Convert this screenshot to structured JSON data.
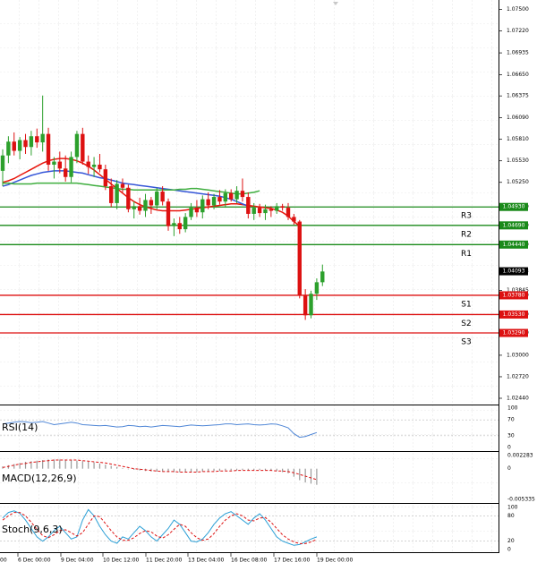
{
  "colors": {
    "up": "#2ca02c",
    "down": "#dd1111",
    "resistance": "#1a8a1a",
    "support": "#dd1111",
    "ma_fast": "#e8150c",
    "ma_mid": "#3656d8",
    "ma_slow": "#3fae3f",
    "rsi": "#4f86d6",
    "macd_hist": "#9a9a9a",
    "macd_signal": "#dd1111",
    "stoch_main": "#2b9fd6",
    "stoch_signal": "#dd1111"
  },
  "chart_data": [
    {
      "type": "candlestick",
      "title": "",
      "ylim": [
        1.0244,
        1.0753
      ],
      "y_ticks": [
        "1.07500",
        "1.07220",
        "1.06935",
        "1.06650",
        "1.06375",
        "1.06090",
        "1.05810",
        "1.05530",
        "1.05250",
        "1.04930",
        "1.04690",
        "1.04440",
        "1.04093",
        "1.03845",
        "1.03780",
        "1.03530",
        "1.03290",
        "1.03000",
        "1.02720",
        "1.02440"
      ],
      "x_ticks": [
        "6 Dec 00:00",
        "9 Dec 04:00",
        "10 Dec 12:00",
        "11 Dec 20:00",
        "13 Dec 04:00",
        "16 Dec 08:00",
        "17 Dec 16:00",
        "19 Dec 00:00"
      ],
      "x_tick_partial": "00",
      "current_price": {
        "label": "1.04093",
        "value": 1.04093
      },
      "levels": [
        {
          "name": "R3",
          "label": "1.04930",
          "value": 1.0493,
          "kind": "resistance"
        },
        {
          "name": "R2",
          "label": "1.04690",
          "value": 1.0469,
          "kind": "resistance"
        },
        {
          "name": "R1",
          "label": "1.04440",
          "value": 1.0444,
          "kind": "resistance"
        },
        {
          "name": "S1",
          "label": "1.03780",
          "value": 1.0378,
          "kind": "support"
        },
        {
          "name": "S2",
          "label": "1.03530",
          "value": 1.0353,
          "kind": "support"
        },
        {
          "name": "S3",
          "label": "1.03290",
          "value": 1.0329,
          "kind": "support"
        }
      ],
      "candles": [
        {
          "o": 1.054,
          "h": 1.0568,
          "l": 1.052,
          "c": 1.056
        },
        {
          "o": 1.056,
          "h": 1.0585,
          "l": 1.055,
          "c": 1.0578
        },
        {
          "o": 1.0578,
          "h": 1.059,
          "l": 1.056,
          "c": 1.0566
        },
        {
          "o": 1.0566,
          "h": 1.0584,
          "l": 1.0555,
          "c": 1.058
        },
        {
          "o": 1.058,
          "h": 1.0588,
          "l": 1.0562,
          "c": 1.0571
        },
        {
          "o": 1.0571,
          "h": 1.0592,
          "l": 1.056,
          "c": 1.0585
        },
        {
          "o": 1.0585,
          "h": 1.0595,
          "l": 1.057,
          "c": 1.0577
        },
        {
          "o": 1.0577,
          "h": 1.0638,
          "l": 1.0565,
          "c": 1.0588
        },
        {
          "o": 1.0588,
          "h": 1.0596,
          "l": 1.054,
          "c": 1.0548
        },
        {
          "o": 1.0548,
          "h": 1.0558,
          "l": 1.053,
          "c": 1.0552
        },
        {
          "o": 1.0552,
          "h": 1.0565,
          "l": 1.0537,
          "c": 1.0543
        },
        {
          "o": 1.0543,
          "h": 1.056,
          "l": 1.0526,
          "c": 1.0532
        },
        {
          "o": 1.0532,
          "h": 1.0565,
          "l": 1.0525,
          "c": 1.0558
        },
        {
          "o": 1.0558,
          "h": 1.0592,
          "l": 1.055,
          "c": 1.0588
        },
        {
          "o": 1.0588,
          "h": 1.0596,
          "l": 1.0548,
          "c": 1.0552
        },
        {
          "o": 1.0552,
          "h": 1.056,
          "l": 1.0536,
          "c": 1.0545
        },
        {
          "o": 1.0545,
          "h": 1.0558,
          "l": 1.0532,
          "c": 1.0548
        },
        {
          "o": 1.0548,
          "h": 1.0562,
          "l": 1.0538,
          "c": 1.0542
        },
        {
          "o": 1.0542,
          "h": 1.0548,
          "l": 1.0515,
          "c": 1.052
        },
        {
          "o": 1.052,
          "h": 1.053,
          "l": 1.0493,
          "c": 1.0498
        },
        {
          "o": 1.0498,
          "h": 1.0528,
          "l": 1.049,
          "c": 1.0523
        },
        {
          "o": 1.0523,
          "h": 1.053,
          "l": 1.0512,
          "c": 1.0518
        },
        {
          "o": 1.0518,
          "h": 1.0522,
          "l": 1.0486,
          "c": 1.049
        },
        {
          "o": 1.049,
          "h": 1.05,
          "l": 1.0478,
          "c": 1.0494
        },
        {
          "o": 1.0494,
          "h": 1.0505,
          "l": 1.0483,
          "c": 1.0488
        },
        {
          "o": 1.0488,
          "h": 1.051,
          "l": 1.048,
          "c": 1.0502
        },
        {
          "o": 1.0502,
          "h": 1.0506,
          "l": 1.0484,
          "c": 1.0495
        },
        {
          "o": 1.0495,
          "h": 1.0518,
          "l": 1.049,
          "c": 1.0513
        },
        {
          "o": 1.0513,
          "h": 1.052,
          "l": 1.0495,
          "c": 1.05
        },
        {
          "o": 1.05,
          "h": 1.0504,
          "l": 1.0462,
          "c": 1.0468
        },
        {
          "o": 1.0468,
          "h": 1.0478,
          "l": 1.0455,
          "c": 1.0472
        },
        {
          "o": 1.0472,
          "h": 1.048,
          "l": 1.0458,
          "c": 1.0464
        },
        {
          "o": 1.0464,
          "h": 1.0485,
          "l": 1.046,
          "c": 1.048
        },
        {
          "o": 1.048,
          "h": 1.0498,
          "l": 1.0476,
          "c": 1.0492
        },
        {
          "o": 1.0492,
          "h": 1.0502,
          "l": 1.048,
          "c": 1.0486
        },
        {
          "o": 1.0486,
          "h": 1.0508,
          "l": 1.0478,
          "c": 1.0503
        },
        {
          "o": 1.0503,
          "h": 1.0512,
          "l": 1.049,
          "c": 1.0495
        },
        {
          "o": 1.0495,
          "h": 1.051,
          "l": 1.049,
          "c": 1.0506
        },
        {
          "o": 1.0506,
          "h": 1.0515,
          "l": 1.0496,
          "c": 1.05
        },
        {
          "o": 1.05,
          "h": 1.0516,
          "l": 1.0492,
          "c": 1.0511
        },
        {
          "o": 1.0511,
          "h": 1.0516,
          "l": 1.05,
          "c": 1.0503
        },
        {
          "o": 1.0503,
          "h": 1.052,
          "l": 1.0498,
          "c": 1.0514
        },
        {
          "o": 1.0514,
          "h": 1.053,
          "l": 1.05,
          "c": 1.0506
        },
        {
          "o": 1.0506,
          "h": 1.0512,
          "l": 1.0478,
          "c": 1.0484
        },
        {
          "o": 1.0484,
          "h": 1.0498,
          "l": 1.0476,
          "c": 1.0492
        },
        {
          "o": 1.0492,
          "h": 1.0497,
          "l": 1.048,
          "c": 1.0485
        },
        {
          "o": 1.0485,
          "h": 1.0496,
          "l": 1.0476,
          "c": 1.049
        },
        {
          "o": 1.049,
          "h": 1.0494,
          "l": 1.048,
          "c": 1.0488
        },
        {
          "o": 1.0488,
          "h": 1.0498,
          "l": 1.0484,
          "c": 1.0494
        },
        {
          "o": 1.0494,
          "h": 1.0497,
          "l": 1.0488,
          "c": 1.0492
        },
        {
          "o": 1.0492,
          "h": 1.0498,
          "l": 1.0476,
          "c": 1.048
        },
        {
          "o": 1.048,
          "h": 1.0484,
          "l": 1.047,
          "c": 1.0474
        },
        {
          "o": 1.0474,
          "h": 1.0476,
          "l": 1.0374,
          "c": 1.0378
        },
        {
          "o": 1.0378,
          "h": 1.0386,
          "l": 1.0346,
          "c": 1.0352
        },
        {
          "o": 1.0352,
          "h": 1.0384,
          "l": 1.0348,
          "c": 1.038
        },
        {
          "o": 1.038,
          "h": 1.04,
          "l": 1.0372,
          "c": 1.0395
        },
        {
          "o": 1.0395,
          "h": 1.0418,
          "l": 1.039,
          "c": 1.0409
        }
      ],
      "ma": [
        {
          "name": "fast",
          "points": [
            1.0525,
            1.0527,
            1.053,
            1.0534,
            1.0538,
            1.0542,
            1.0546,
            1.055,
            1.0553,
            1.0555,
            1.0556,
            1.0556,
            1.0555,
            1.0553,
            1.055,
            1.0546,
            1.0541,
            1.0535,
            1.0529,
            1.0523,
            1.0517,
            1.0511,
            1.0505,
            1.05,
            1.0496,
            1.0493,
            1.0491,
            1.0489,
            1.0488,
            1.0488,
            1.0488,
            1.0488,
            1.0489,
            1.049,
            1.0491,
            1.0492,
            1.0493,
            1.0494,
            1.0495,
            1.0496,
            1.0497,
            1.0497,
            1.0496,
            1.0495,
            1.0494,
            1.0493,
            1.0492,
            1.0491,
            1.0489,
            1.0486,
            1.0481,
            1.0474,
            1.0468
          ]
        },
        {
          "name": "mid",
          "points": [
            1.052,
            1.0522,
            1.0525,
            1.0528,
            1.0531,
            1.0534,
            1.0536,
            1.0538,
            1.0539,
            1.054,
            1.054,
            1.054,
            1.0539,
            1.0538,
            1.0537,
            1.0535,
            1.0533,
            1.0531,
            1.053,
            1.0528,
            1.0526,
            1.0524,
            1.0523,
            1.0522,
            1.0521,
            1.052,
            1.0519,
            1.0518,
            1.0517,
            1.0516,
            1.0515,
            1.0514,
            1.0513,
            1.0512,
            1.0511,
            1.051,
            1.0509,
            1.0508,
            1.0507,
            1.0505,
            1.0503,
            1.05,
            1.0497,
            1.0494
          ]
        },
        {
          "name": "slow",
          "points": [
            1.0524,
            1.0524,
            1.0523,
            1.0523,
            1.0523,
            1.0523,
            1.0524,
            1.0524,
            1.0524,
            1.0524,
            1.0524,
            1.0524,
            1.0524,
            1.0524,
            1.0523,
            1.0522,
            1.0521,
            1.052,
            1.0519,
            1.0518,
            1.0517,
            1.0516,
            1.0516,
            1.0515,
            1.0515,
            1.0515,
            1.0515,
            1.0515,
            1.0515,
            1.0515,
            1.0515,
            1.0516,
            1.0516,
            1.0517,
            1.0517,
            1.0516,
            1.0515,
            1.0514,
            1.0513,
            1.0512,
            1.0511,
            1.051,
            1.051,
            1.0511,
            1.0512,
            1.0514
          ]
        }
      ]
    },
    {
      "type": "line",
      "title": "RSI(14)",
      "ylim": [
        0,
        100
      ],
      "y_ticks": [
        "100",
        "70",
        "30",
        "0"
      ],
      "series": [
        {
          "name": "RSI(14)",
          "values": [
            60,
            62,
            64,
            66,
            65,
            63,
            64,
            66,
            62,
            58,
            60,
            62,
            64,
            62,
            58,
            57,
            56,
            55,
            56,
            54,
            52,
            53,
            56,
            55,
            53,
            54,
            52,
            54,
            56,
            55,
            54,
            53,
            55,
            57,
            56,
            55,
            56,
            57,
            58,
            60,
            60,
            58,
            59,
            60,
            58,
            57,
            58,
            60,
            59,
            55,
            50,
            35,
            26,
            28,
            33,
            38
          ]
        }
      ]
    },
    {
      "type": "bar",
      "title": "MACD(12,26,9)",
      "ylim": [
        -0.005335,
        0.002283
      ],
      "y_ticks": [
        "0.002283",
        "0",
        "-0.005335"
      ],
      "series": [
        {
          "name": "histogram",
          "values": [
            0.0004,
            0.0006,
            0.0008,
            0.001,
            0.0012,
            0.0013,
            0.0014,
            0.0015,
            0.0016,
            0.0016,
            0.0016,
            0.0016,
            0.0015,
            0.0014,
            0.0013,
            0.0012,
            0.0011,
            0.0009,
            0.0007,
            0.0005,
            0.0003,
            0.0001,
            -0.0001,
            -0.0002,
            -0.0003,
            -0.0004,
            -0.0005,
            -0.0005,
            -0.0005,
            -0.0006,
            -0.0006,
            -0.0006,
            -0.0006,
            -0.0006,
            -0.0006,
            -0.0005,
            -0.0005,
            -0.0004,
            -0.0004,
            -0.0003,
            -0.0003,
            -0.0003,
            -0.0002,
            -0.0002,
            -0.0002,
            -0.0002,
            -0.0003,
            -0.0003,
            -0.0004,
            -0.0006,
            -0.0008,
            -0.0014,
            -0.002,
            -0.0024,
            -0.0026,
            -0.0028
          ]
        },
        {
          "name": "signal",
          "values": [
            0.0002,
            0.0004,
            0.0006,
            0.0008,
            0.0009,
            0.0011,
            0.0012,
            0.0013,
            0.0014,
            0.0015,
            0.0015,
            0.0015,
            0.0015,
            0.0015,
            0.0014,
            0.0013,
            0.0012,
            0.0011,
            0.001,
            0.0008,
            0.0006,
            0.0004,
            0.0002,
            0.0,
            -0.0001,
            -0.0002,
            -0.0003,
            -0.0004,
            -0.0005,
            -0.0005,
            -0.0005,
            -0.0006,
            -0.0006,
            -0.0006,
            -0.0006,
            -0.0005,
            -0.0005,
            -0.0005,
            -0.0004,
            -0.0004,
            -0.0004,
            -0.0003,
            -0.0003,
            -0.0003,
            -0.0003,
            -0.0003,
            -0.0003,
            -0.0003,
            -0.0004,
            -0.0004,
            -0.0005,
            -0.0007,
            -0.001,
            -0.0013,
            -0.0016,
            -0.0019
          ]
        }
      ]
    },
    {
      "type": "line",
      "title": "Stoch(9,6,3)",
      "ylim": [
        0,
        100
      ],
      "y_ticks": [
        "100",
        "80",
        "20",
        "0"
      ],
      "series": [
        {
          "name": "main",
          "values": [
            75,
            88,
            92,
            86,
            70,
            50,
            30,
            20,
            30,
            45,
            55,
            40,
            25,
            30,
            70,
            95,
            80,
            55,
            35,
            20,
            15,
            30,
            25,
            40,
            55,
            45,
            30,
            20,
            35,
            50,
            70,
            60,
            40,
            20,
            18,
            25,
            40,
            60,
            75,
            85,
            90,
            80,
            70,
            60,
            75,
            85,
            70,
            50,
            30,
            20,
            15,
            10,
            12,
            18,
            25,
            30
          ]
        },
        {
          "name": "signal",
          "values": [
            70,
            80,
            88,
            88,
            80,
            65,
            48,
            33,
            28,
            35,
            45,
            47,
            40,
            32,
            40,
            60,
            80,
            78,
            62,
            45,
            30,
            22,
            22,
            28,
            38,
            45,
            42,
            32,
            27,
            35,
            48,
            60,
            55,
            40,
            28,
            22,
            25,
            38,
            55,
            70,
            80,
            85,
            80,
            70,
            68,
            75,
            76,
            65,
            50,
            35,
            25,
            18,
            14,
            14,
            18,
            24
          ]
        }
      ]
    }
  ]
}
